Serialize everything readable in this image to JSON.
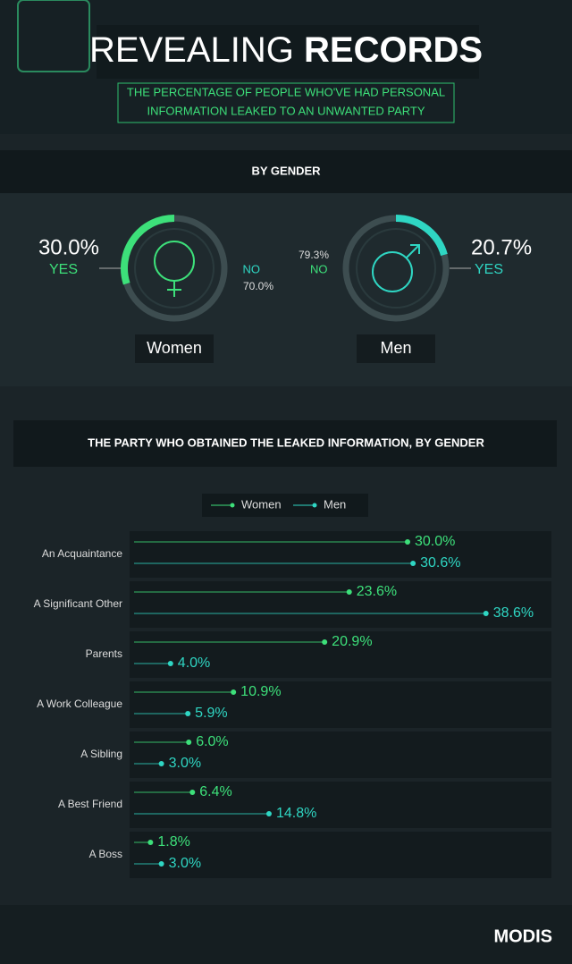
{
  "header": {
    "title_light": "REVEALING",
    "title_bold": "RECORDS",
    "subtitle": [
      "THE PERCENTAGE OF PEOPLE WHO'VE HAD PERSONAL",
      "INFORMATION LEAKED TO AN UNWANTED PARTY"
    ],
    "section_title": "BY GENDER"
  },
  "chart_data": [
    {
      "type": "donut",
      "title": "Women",
      "categories": [
        "YES",
        "NO"
      ],
      "values": [
        30.0,
        70.0
      ],
      "value_labels": [
        "30.0%",
        "70.0%"
      ],
      "colors": [
        "#3de07a",
        "#3d4d50"
      ]
    },
    {
      "type": "donut",
      "title": "Men",
      "categories": [
        "YES",
        "NO"
      ],
      "values": [
        20.7,
        79.3
      ],
      "value_labels": [
        "20.7%",
        "79.3%"
      ],
      "colors": [
        "#2fd6c3",
        "#3d4d50"
      ]
    },
    {
      "type": "lollipop",
      "title": "THE PARTY WHO OBTAINED THE LEAKED INFORMATION, BY GENDER",
      "categories": [
        "An Acquaintance",
        "A Significant Other",
        "Parents",
        "A Work Colleague",
        "A Sibling",
        "A Best Friend",
        "A Boss"
      ],
      "series": [
        {
          "name": "Women",
          "color": "#3de07a",
          "values": [
            30.0,
            23.6,
            20.9,
            10.9,
            6.0,
            6.4,
            1.8
          ],
          "value_labels": [
            "30.0%",
            "23.6%",
            "20.9%",
            "10.9%",
            "6.0%",
            "6.4%",
            "1.8%"
          ]
        },
        {
          "name": "Men",
          "color": "#2fd6c3",
          "values": [
            30.6,
            38.6,
            4.0,
            5.9,
            3.0,
            14.8,
            3.0
          ],
          "value_labels": [
            "30.6%",
            "38.6%",
            "4.0%",
            "5.9%",
            "3.0%",
            "14.8%",
            "3.0%"
          ]
        }
      ],
      "xlim": [
        0,
        45
      ]
    }
  ],
  "footer": {
    "brand": "MODIS"
  }
}
